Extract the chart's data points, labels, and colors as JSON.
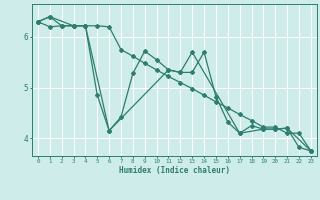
{
  "xlabel": "Humidex (Indice chaleur)",
  "background_color": "#ceecea",
  "grid_color": "#ffffff",
  "line_color": "#2e7d6e",
  "xlim": [
    -0.5,
    23.5
  ],
  "ylim": [
    3.65,
    6.65
  ],
  "yticks": [
    4,
    5,
    6
  ],
  "xticks": [
    0,
    1,
    2,
    3,
    4,
    5,
    6,
    7,
    8,
    9,
    10,
    11,
    12,
    13,
    14,
    15,
    16,
    17,
    18,
    19,
    20,
    21,
    22,
    23
  ],
  "series1_x": [
    0,
    1,
    2,
    3,
    4,
    5,
    6,
    7,
    8,
    9,
    10,
    11,
    12,
    13,
    14,
    15,
    16,
    17,
    18,
    19,
    20,
    21,
    22,
    23
  ],
  "series1_y": [
    6.3,
    6.2,
    6.22,
    6.22,
    6.22,
    6.22,
    6.2,
    5.75,
    5.62,
    5.48,
    5.35,
    5.22,
    5.1,
    4.98,
    4.85,
    4.72,
    4.6,
    4.47,
    4.35,
    4.22,
    4.22,
    4.1,
    4.1,
    3.75
  ],
  "series2_x": [
    0,
    1,
    2,
    3,
    4,
    5,
    6,
    7,
    8,
    9,
    10,
    11,
    12,
    13,
    14,
    15,
    16,
    17,
    18,
    19,
    20,
    21,
    22,
    23
  ],
  "series2_y": [
    6.3,
    6.4,
    6.22,
    6.22,
    6.22,
    4.85,
    4.15,
    4.42,
    5.28,
    5.72,
    5.55,
    5.35,
    5.3,
    5.3,
    5.7,
    4.82,
    4.32,
    4.1,
    4.25,
    4.18,
    4.18,
    4.2,
    3.82,
    3.75
  ],
  "series3_x": [
    0,
    1,
    3,
    4,
    6,
    11,
    12,
    13,
    17,
    19,
    20,
    21,
    23
  ],
  "series3_y": [
    6.3,
    6.4,
    6.22,
    6.22,
    4.15,
    5.35,
    5.3,
    5.7,
    4.1,
    4.18,
    4.18,
    4.2,
    3.75
  ]
}
